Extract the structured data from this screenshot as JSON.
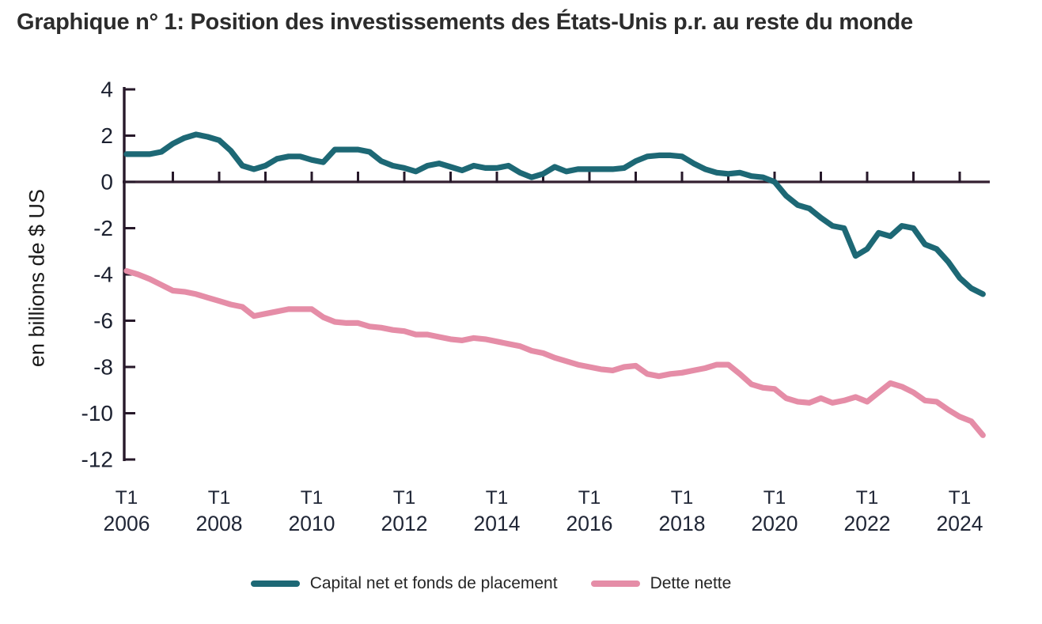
{
  "title": "Graphique n° 1: Position des investissements des États-Unis p.r. au reste du monde",
  "chart_data": {
    "type": "line",
    "title": "Graphique n° 1: Position des investissements des États-Unis p.r. au reste du monde",
    "xlabel": "",
    "ylabel": "en billions de $ US",
    "ylim": [
      -12,
      4
    ],
    "y_ticks": [
      4,
      2,
      0,
      -2,
      -4,
      -6,
      -8,
      -10,
      -12
    ],
    "x_tick_prefix": "T1",
    "x_ticks": [
      {
        "quarter": "T1",
        "year": "2006"
      },
      {
        "quarter": "T1",
        "year": "2008"
      },
      {
        "quarter": "T1",
        "year": "2010"
      },
      {
        "quarter": "T1",
        "year": "2012"
      },
      {
        "quarter": "T1",
        "year": "2014"
      },
      {
        "quarter": "T1",
        "year": "2016"
      },
      {
        "quarter": "T1",
        "year": "2018"
      },
      {
        "quarter": "T1",
        "year": "2020"
      },
      {
        "quarter": "T1",
        "year": "2022"
      },
      {
        "quarter": "T1",
        "year": "2024"
      }
    ],
    "x_start_year": 2006,
    "x_step_years": 0.25,
    "x_end_year": 2024.5,
    "minor_tick_interval_years": 1,
    "grid": false,
    "legend_position": "bottom",
    "axis_color": "#27192a",
    "zero_line_color": "#342031",
    "background_color": "#ffffff",
    "series": [
      {
        "name": "Capital net et fonds de placement",
        "color": "#1d6875",
        "values": [
          1.2,
          1.2,
          1.2,
          1.3,
          1.65,
          1.9,
          2.05,
          1.95,
          1.8,
          1.35,
          0.7,
          0.55,
          0.7,
          1.0,
          1.1,
          1.1,
          0.95,
          0.85,
          1.4,
          1.4,
          1.4,
          1.3,
          0.9,
          0.7,
          0.6,
          0.45,
          0.7,
          0.8,
          0.65,
          0.5,
          0.7,
          0.6,
          0.6,
          0.7,
          0.4,
          0.2,
          0.35,
          0.65,
          0.45,
          0.55,
          0.55,
          0.55,
          0.55,
          0.6,
          0.9,
          1.1,
          1.15,
          1.15,
          1.1,
          0.8,
          0.55,
          0.4,
          0.35,
          0.4,
          0.25,
          0.2,
          0.0,
          -0.6,
          -1.0,
          -1.15,
          -1.55,
          -1.9,
          -2.0,
          -3.2,
          -2.9,
          -2.2,
          -2.35,
          -1.9,
          -2.0,
          -2.7,
          -2.9,
          -3.45,
          -4.15,
          -4.6,
          -4.85
        ]
      },
      {
        "name": "Dette nette",
        "color": "#e58da7",
        "values": [
          -3.85,
          -4.0,
          -4.2,
          -4.45,
          -4.7,
          -4.75,
          -4.85,
          -5.0,
          -5.15,
          -5.3,
          -5.4,
          -5.8,
          -5.7,
          -5.6,
          -5.5,
          -5.5,
          -5.5,
          -5.85,
          -6.05,
          -6.1,
          -6.1,
          -6.25,
          -6.3,
          -6.4,
          -6.45,
          -6.6,
          -6.6,
          -6.7,
          -6.8,
          -6.85,
          -6.75,
          -6.8,
          -6.9,
          -7.0,
          -7.1,
          -7.3,
          -7.4,
          -7.6,
          -7.75,
          -7.9,
          -8.0,
          -8.1,
          -8.15,
          -8.0,
          -7.95,
          -8.3,
          -8.4,
          -8.3,
          -8.25,
          -8.15,
          -8.05,
          -7.9,
          -7.9,
          -8.3,
          -8.75,
          -8.9,
          -8.95,
          -9.35,
          -9.5,
          -9.55,
          -9.35,
          -9.55,
          -9.45,
          -9.3,
          -9.5,
          -9.1,
          -8.7,
          -8.85,
          -9.1,
          -9.45,
          -9.5,
          -9.85,
          -10.15,
          -10.35,
          -10.95
        ]
      }
    ]
  }
}
